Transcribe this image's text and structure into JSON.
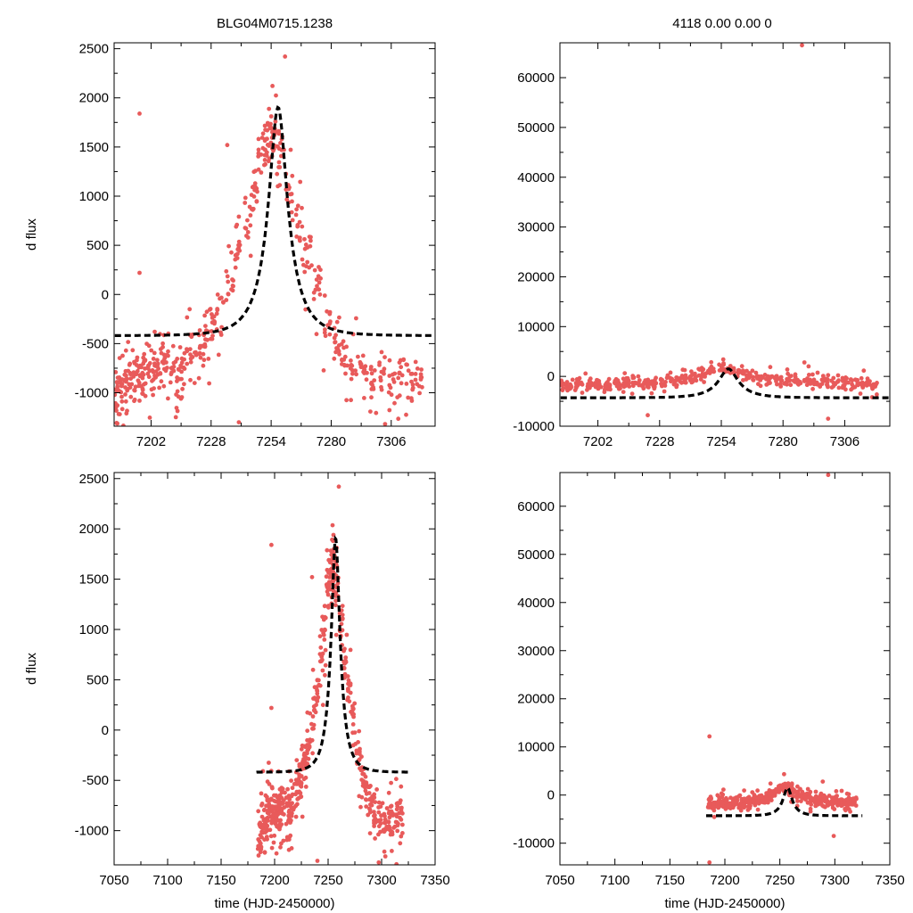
{
  "figure": {
    "left_title": "BLG04M0715.1238",
    "right_title": "4118  0.00  0.00  0",
    "ylabel": "d flux",
    "xlabel": "time (HJD-2450000)"
  },
  "colors": {
    "points": "#e85a5a",
    "model": "#000000",
    "axes": "#000000"
  },
  "chart_data": [
    {
      "id": "top-left",
      "type": "scatter",
      "title": "BLG04M0715.1238",
      "xlabel": "",
      "ylabel": "d flux",
      "xlim": [
        7186,
        7325
      ],
      "ylim": [
        -1340,
        2560
      ],
      "xticks": [
        7202,
        7228,
        7254,
        7280,
        7306
      ],
      "xtick_labels": [
        "7202",
        "7228",
        "7254",
        "7280",
        "7306"
      ],
      "yticks": [
        -1000,
        -500,
        0,
        500,
        1000,
        1500,
        2000,
        2500
      ],
      "ytick_labels": [
        "-1000",
        "-500",
        "0",
        "500",
        "1000",
        "1500",
        "2000",
        "2500"
      ],
      "outliers": [
        [
          7197,
          1840
        ],
        [
          7197,
          220
        ],
        [
          7235,
          1520
        ],
        [
          7260,
          2420
        ],
        [
          7268,
          300
        ],
        [
          7240,
          -1300
        ]
      ],
      "series": [
        {
          "name": "data",
          "kind": "points",
          "x": [
            7186,
            7188,
            7190,
            7192,
            7194,
            7196,
            7198,
            7200,
            7202,
            7204,
            7206,
            7208,
            7212,
            7214,
            7216,
            7220,
            7224,
            7226,
            7228,
            7232,
            7236,
            7240,
            7244,
            7247,
            7250,
            7252,
            7254,
            7256,
            7258,
            7262,
            7266,
            7270,
            7274,
            7278,
            7282,
            7286,
            7290,
            7294,
            7298,
            7302,
            7306,
            7310,
            7314,
            7318
          ],
          "y": [
            -1100,
            -1050,
            -950,
            -900,
            -850,
            -800,
            -820,
            -760,
            -800,
            -750,
            -780,
            -700,
            -820,
            -900,
            -700,
            -620,
            -540,
            -450,
            -350,
            -150,
            150,
            400,
            750,
            1050,
            1350,
            1550,
            1700,
            1600,
            1450,
            1050,
            700,
            380,
            100,
            -250,
            -480,
            -620,
            -720,
            -800,
            -860,
            -900,
            -930,
            -900,
            -880,
            -860
          ]
        },
        {
          "name": "model",
          "kind": "dashed-line",
          "t0": 7257,
          "tE": 12,
          "u0": 0.33,
          "base": -1500,
          "amp": 1080
        }
      ]
    },
    {
      "id": "top-right",
      "type": "scatter",
      "title": "4118  0.00  0.00  0",
      "xlabel": "",
      "ylabel": "",
      "xlim": [
        7186,
        7325
      ],
      "ylim": [
        -10000,
        67000
      ],
      "xticks": [
        7202,
        7228,
        7254,
        7280,
        7306
      ],
      "xtick_labels": [
        "7202",
        "7228",
        "7254",
        "7280",
        "7306"
      ],
      "yticks": [
        -10000,
        0,
        10000,
        20000,
        30000,
        40000,
        50000,
        60000
      ],
      "ytick_labels": [
        "-10000",
        "0",
        "10000",
        "20000",
        "30000",
        "40000",
        "50000",
        "60000"
      ],
      "outliers": [
        [
          7288,
          66500
        ],
        [
          7289,
          2800
        ],
        [
          7299,
          -8500
        ],
        [
          7223,
          -7800
        ]
      ],
      "series": [
        {
          "name": "data",
          "kind": "points",
          "x": [
            7186,
            7190,
            7194,
            7198,
            7202,
            7206,
            7210,
            7214,
            7218,
            7222,
            7226,
            7230,
            7234,
            7238,
            7242,
            7246,
            7250,
            7254,
            7258,
            7262,
            7266,
            7270,
            7274,
            7278,
            7282,
            7286,
            7290,
            7294,
            7298,
            7302,
            7306,
            7310,
            7314,
            7318
          ],
          "y": [
            -1800,
            -1800,
            -1700,
            -1700,
            -1650,
            -1600,
            -1550,
            -1500,
            -1400,
            -1300,
            -1150,
            -950,
            -700,
            -350,
            100,
            700,
            1300,
            1700,
            1400,
            800,
            250,
            -200,
            -500,
            -750,
            -950,
            -1050,
            -1150,
            -1250,
            -1300,
            -1350,
            -1400,
            -1450,
            -1500,
            -1550
          ]
        },
        {
          "name": "model",
          "kind": "dashed-line",
          "t0": 7257,
          "tE": 12,
          "u0": 0.33,
          "base": -7000,
          "amp": 2700
        }
      ]
    },
    {
      "id": "bottom-left",
      "type": "scatter",
      "title": "",
      "xlabel": "time (HJD-2450000)",
      "ylabel": "d flux",
      "xlim": [
        7050,
        7350
      ],
      "ylim": [
        -1340,
        2560
      ],
      "xticks": [
        7050,
        7100,
        7150,
        7200,
        7250,
        7300,
        7350
      ],
      "xtick_labels": [
        "7050",
        "7100",
        "7150",
        "7200",
        "7250",
        "7300",
        "7350"
      ],
      "yticks": [
        -1000,
        -500,
        0,
        500,
        1000,
        1500,
        2000,
        2500
      ],
      "ytick_labels": [
        "-1000",
        "-500",
        "0",
        "500",
        "1000",
        "1500",
        "2000",
        "2500"
      ],
      "outliers": [
        [
          7197,
          1840
        ],
        [
          7197,
          220
        ],
        [
          7235,
          1520
        ],
        [
          7260,
          2420
        ],
        [
          7268,
          300
        ],
        [
          7240,
          -1300
        ]
      ],
      "series": [
        {
          "name": "data",
          "kind": "points",
          "x": [
            7186,
            7188,
            7190,
            7192,
            7194,
            7196,
            7198,
            7200,
            7202,
            7204,
            7206,
            7208,
            7212,
            7214,
            7216,
            7220,
            7224,
            7226,
            7228,
            7232,
            7236,
            7240,
            7244,
            7247,
            7250,
            7252,
            7254,
            7256,
            7258,
            7262,
            7266,
            7270,
            7274,
            7278,
            7282,
            7286,
            7290,
            7294,
            7298,
            7302,
            7306,
            7310,
            7314,
            7318
          ],
          "y": [
            -1100,
            -1050,
            -950,
            -900,
            -850,
            -800,
            -820,
            -760,
            -800,
            -750,
            -780,
            -700,
            -820,
            -900,
            -700,
            -620,
            -540,
            -450,
            -350,
            -150,
            150,
            400,
            750,
            1050,
            1350,
            1550,
            1700,
            1600,
            1450,
            1050,
            700,
            380,
            100,
            -250,
            -480,
            -620,
            -720,
            -800,
            -860,
            -900,
            -930,
            -900,
            -880,
            -860
          ]
        },
        {
          "name": "model",
          "kind": "dashed-line",
          "t0": 7257,
          "tE": 12,
          "u0": 0.33,
          "base": -1500,
          "amp": 1080
        }
      ]
    },
    {
      "id": "bottom-right",
      "type": "scatter",
      "title": "",
      "xlabel": "time (HJD-2450000)",
      "ylabel": "",
      "xlim": [
        7050,
        7350
      ],
      "ylim": [
        -14500,
        67000
      ],
      "xticks": [
        7050,
        7100,
        7150,
        7200,
        7250,
        7300,
        7350
      ],
      "xtick_labels": [
        "7050",
        "7100",
        "7150",
        "7200",
        "7250",
        "7300",
        "7350"
      ],
      "yticks": [
        -10000,
        0,
        10000,
        20000,
        30000,
        40000,
        50000,
        60000
      ],
      "ytick_labels": [
        "-10000",
        "0",
        "10000",
        "20000",
        "30000",
        "40000",
        "50000",
        "60000"
      ],
      "outliers": [
        [
          7294,
          66500
        ],
        [
          7186,
          12200
        ],
        [
          7186,
          -14000
        ],
        [
          7289,
          2800
        ],
        [
          7299,
          -8500
        ]
      ],
      "series": [
        {
          "name": "data",
          "kind": "points",
          "x": [
            7186,
            7190,
            7194,
            7198,
            7202,
            7206,
            7210,
            7214,
            7218,
            7222,
            7226,
            7230,
            7234,
            7238,
            7242,
            7246,
            7250,
            7254,
            7258,
            7262,
            7266,
            7270,
            7274,
            7278,
            7282,
            7286,
            7290,
            7294,
            7298,
            7302,
            7306,
            7310,
            7314,
            7318
          ],
          "y": [
            -1800,
            -1800,
            -1700,
            -1700,
            -1650,
            -1600,
            -1550,
            -1500,
            -1400,
            -1300,
            -1150,
            -950,
            -700,
            -350,
            100,
            700,
            1300,
            1700,
            1400,
            800,
            250,
            -200,
            -500,
            -750,
            -950,
            -1050,
            -1150,
            -1250,
            -1300,
            -1350,
            -1400,
            -1450,
            -1500,
            -1550
          ]
        },
        {
          "name": "model",
          "kind": "dashed-line",
          "t0": 7257,
          "tE": 12,
          "u0": 0.33,
          "base": -7000,
          "amp": 2700
        }
      ]
    }
  ]
}
